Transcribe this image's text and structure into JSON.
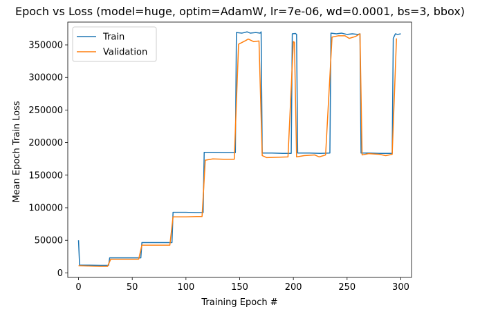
{
  "chart_data": {
    "type": "line",
    "title": "Epoch vs Loss (model=huge, optim=AdamW, lr=7e-06, wd=0.0001, bs=3, bbox)",
    "xlabel": "Training Epoch #",
    "ylabel": "Mean Epoch Train Loss",
    "xlim": [
      -10,
      310
    ],
    "ylim": [
      -7000,
      385000
    ],
    "xticks": [
      0,
      50,
      100,
      150,
      200,
      250,
      300
    ],
    "yticks": [
      0,
      50000,
      100000,
      150000,
      200000,
      250000,
      300000,
      350000
    ],
    "grid": false,
    "legend_position": "upper-left",
    "series": [
      {
        "name": "Train",
        "color": "#1f77b4",
        "points": [
          [
            0,
            50000
          ],
          [
            1,
            12000
          ],
          [
            10,
            11800
          ],
          [
            20,
            11600
          ],
          [
            28,
            11500
          ],
          [
            29,
            23000
          ],
          [
            40,
            23000
          ],
          [
            50,
            23000
          ],
          [
            58,
            23000
          ],
          [
            59,
            46500
          ],
          [
            70,
            46500
          ],
          [
            80,
            46500
          ],
          [
            87,
            46500
          ],
          [
            88,
            93000
          ],
          [
            100,
            93000
          ],
          [
            110,
            92500
          ],
          [
            116,
            92500
          ],
          [
            117,
            185000
          ],
          [
            125,
            185000
          ],
          [
            135,
            184500
          ],
          [
            146,
            184500
          ],
          [
            147,
            369000
          ],
          [
            152,
            368000
          ],
          [
            157,
            370000
          ],
          [
            160,
            368000
          ],
          [
            165,
            369000
          ],
          [
            169,
            368000
          ],
          [
            170,
            370000
          ],
          [
            171,
            184000
          ],
          [
            180,
            184000
          ],
          [
            190,
            183500
          ],
          [
            198,
            183500
          ],
          [
            199,
            367000
          ],
          [
            202,
            367500
          ],
          [
            203,
            366000
          ],
          [
            204,
            184000
          ],
          [
            215,
            184000
          ],
          [
            225,
            183500
          ],
          [
            234,
            184000
          ],
          [
            235,
            368000
          ],
          [
            240,
            367000
          ],
          [
            245,
            368000
          ],
          [
            250,
            366000
          ],
          [
            255,
            367000
          ],
          [
            260,
            366000
          ],
          [
            262,
            367000
          ],
          [
            263,
            184000
          ],
          [
            270,
            184000
          ],
          [
            280,
            183500
          ],
          [
            292,
            183500
          ],
          [
            293,
            360000
          ],
          [
            295,
            367000
          ],
          [
            297,
            366000
          ],
          [
            300,
            367000
          ]
        ]
      },
      {
        "name": "Validation",
        "color": "#ff7f0e",
        "points": [
          [
            0,
            11000
          ],
          [
            10,
            10500
          ],
          [
            20,
            10000
          ],
          [
            27,
            10000
          ],
          [
            30,
            21000
          ],
          [
            40,
            21000
          ],
          [
            50,
            21000
          ],
          [
            56,
            21000
          ],
          [
            59,
            42500
          ],
          [
            70,
            42500
          ],
          [
            80,
            42500
          ],
          [
            85,
            42500
          ],
          [
            88,
            86000
          ],
          [
            100,
            86000
          ],
          [
            110,
            86500
          ],
          [
            115,
            86500
          ],
          [
            118,
            173000
          ],
          [
            125,
            175000
          ],
          [
            135,
            174500
          ],
          [
            145,
            174500
          ],
          [
            149,
            351000
          ],
          [
            156,
            357000
          ],
          [
            158,
            359000
          ],
          [
            163,
            355000
          ],
          [
            168,
            356000
          ],
          [
            171,
            180000
          ],
          [
            175,
            177000
          ],
          [
            185,
            177500
          ],
          [
            195,
            178000
          ],
          [
            200,
            355000
          ],
          [
            201,
            354000
          ],
          [
            203,
            178000
          ],
          [
            210,
            180000
          ],
          [
            220,
            181000
          ],
          [
            224,
            178000
          ],
          [
            230,
            181000
          ],
          [
            236,
            362000
          ],
          [
            242,
            364000
          ],
          [
            248,
            364000
          ],
          [
            252,
            360000
          ],
          [
            258,
            363000
          ],
          [
            262,
            367000
          ],
          [
            264,
            181000
          ],
          [
            270,
            183000
          ],
          [
            280,
            182000
          ],
          [
            286,
            180000
          ],
          [
            292,
            182000
          ],
          [
            296,
            360000
          ]
        ]
      }
    ]
  }
}
